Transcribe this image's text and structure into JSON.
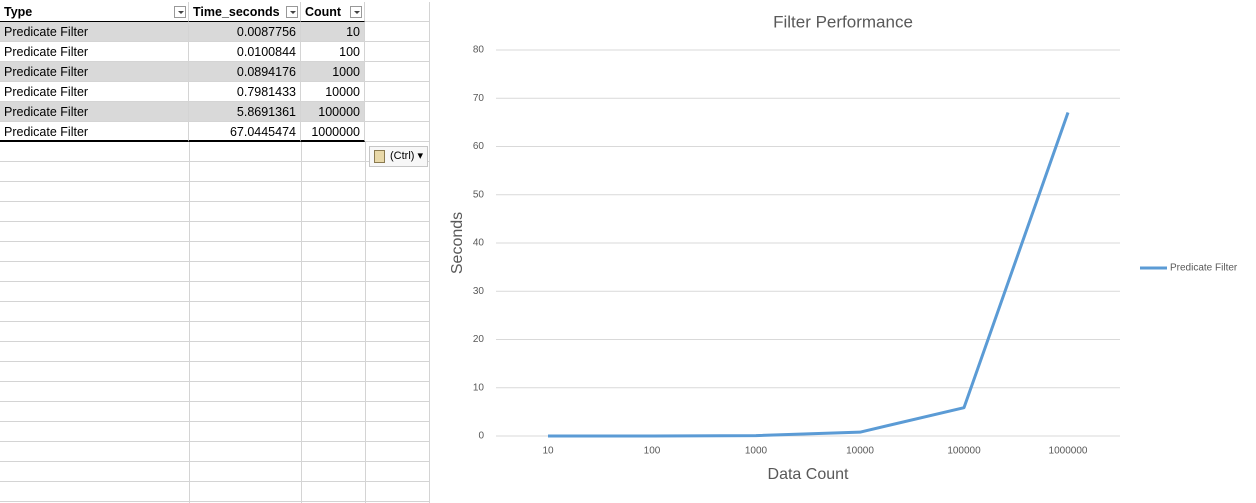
{
  "table": {
    "headers": [
      "Type",
      "Time_seconds",
      "Count"
    ],
    "rows": [
      [
        "Predicate Filter",
        "0.0087756",
        "10"
      ],
      [
        "Predicate Filter",
        "0.0100844",
        "100"
      ],
      [
        "Predicate Filter",
        "0.0894176",
        "1000"
      ],
      [
        "Predicate Filter",
        "0.7981433",
        "10000"
      ],
      [
        "Predicate Filter",
        "5.8691361",
        "100000"
      ],
      [
        "Predicate Filter",
        "67.0445474",
        "1000000"
      ]
    ]
  },
  "paste_button": "(Ctrl)",
  "chart_data": {
    "type": "line",
    "title": "Filter Performance",
    "x_label": "Data Count",
    "y_label": "Seconds",
    "categories": [
      "10",
      "100",
      "1000",
      "10000",
      "100000",
      "1000000"
    ],
    "series": [
      {
        "name": "Predicate Filter",
        "color": "#5b9bd5",
        "values": [
          0.0087756,
          0.0100844,
          0.0894176,
          0.7981433,
          5.8691361,
          67.0445474
        ]
      }
    ],
    "ylim": [
      0,
      80
    ],
    "yticks": [
      0,
      10,
      20,
      30,
      40,
      50,
      60,
      70,
      80
    ],
    "grid": true,
    "legend": "right"
  }
}
